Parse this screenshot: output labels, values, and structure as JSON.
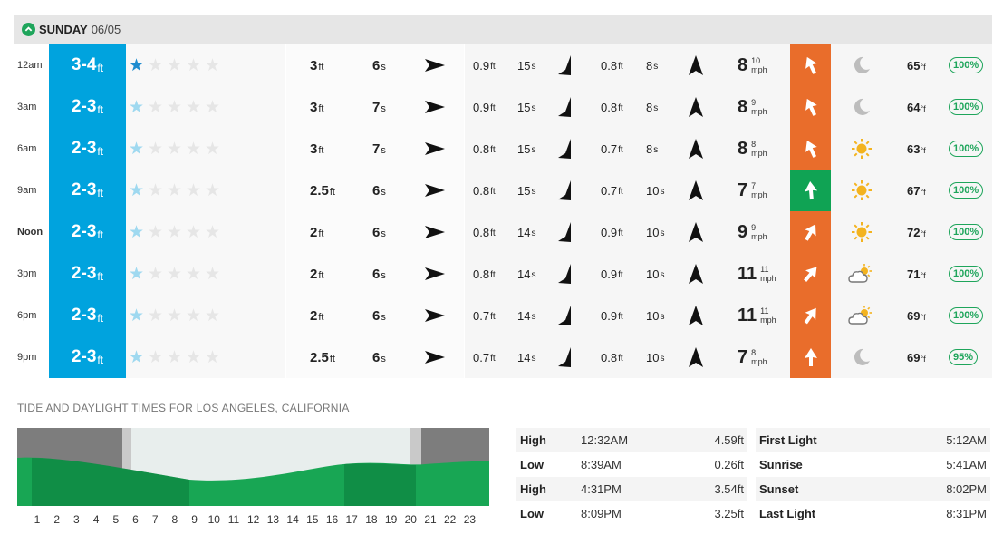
{
  "day": {
    "name": "SUNDAY",
    "date": "06/05"
  },
  "colors": {
    "surf_blue": "#00a3de",
    "wind_orange": "#e96d2b",
    "wind_green": "#10a354",
    "prob_green": "#1ea55b"
  },
  "rows": [
    {
      "time": "12am",
      "surf": "3-4",
      "stars": 1,
      "sw1_height": "3",
      "sw1_period": "6",
      "sw2_height": "0.9",
      "sw2_period": "15",
      "sw3_height": "0.8",
      "sw3_period": "8",
      "wind": "8",
      "wind_gust": "10",
      "wind_color": "orange",
      "wind_dir": 335,
      "weather": "moon",
      "temp": "65",
      "prob": "100%"
    },
    {
      "time": "3am",
      "surf": "2-3",
      "stars": 1,
      "sw1_height": "3",
      "sw1_period": "7",
      "sw2_height": "0.9",
      "sw2_period": "15",
      "sw3_height": "0.8",
      "sw3_period": "8",
      "wind": "8",
      "wind_gust": "9",
      "wind_color": "orange",
      "wind_dir": 335,
      "weather": "moon",
      "temp": "64",
      "prob": "100%"
    },
    {
      "time": "6am",
      "surf": "2-3",
      "stars": 1,
      "sw1_height": "3",
      "sw1_period": "7",
      "sw2_height": "0.8",
      "sw2_period": "15",
      "sw3_height": "0.7",
      "sw3_period": "8",
      "wind": "8",
      "wind_gust": "8",
      "wind_color": "orange",
      "wind_dir": 335,
      "weather": "sun",
      "temp": "63",
      "prob": "100%"
    },
    {
      "time": "9am",
      "surf": "2-3",
      "stars": 1,
      "sw1_height": "2.5",
      "sw1_period": "6",
      "sw2_height": "0.8",
      "sw2_period": "15",
      "sw3_height": "0.7",
      "sw3_period": "10",
      "wind": "7",
      "wind_gust": "7",
      "wind_color": "green",
      "wind_dir": 355,
      "weather": "sun",
      "temp": "67",
      "prob": "100%"
    },
    {
      "time": "Noon",
      "surf": "2-3",
      "stars": 1,
      "sw1_height": "2",
      "sw1_period": "6",
      "sw2_height": "0.8",
      "sw2_period": "14",
      "sw3_height": "0.9",
      "sw3_period": "10",
      "wind": "9",
      "wind_gust": "9",
      "wind_color": "orange",
      "wind_dir": 30,
      "weather": "sun",
      "temp": "72",
      "prob": "100%"
    },
    {
      "time": "3pm",
      "surf": "2-3",
      "stars": 1,
      "sw1_height": "2",
      "sw1_period": "6",
      "sw2_height": "0.8",
      "sw2_period": "14",
      "sw3_height": "0.9",
      "sw3_period": "10",
      "wind": "11",
      "wind_gust": "11",
      "wind_color": "orange",
      "wind_dir": 40,
      "weather": "partly",
      "temp": "71",
      "prob": "100%"
    },
    {
      "time": "6pm",
      "surf": "2-3",
      "stars": 1,
      "sw1_height": "2",
      "sw1_period": "6",
      "sw2_height": "0.7",
      "sw2_period": "14",
      "sw3_height": "0.9",
      "sw3_period": "10",
      "wind": "11",
      "wind_gust": "11",
      "wind_color": "orange",
      "wind_dir": 35,
      "weather": "partly",
      "temp": "69",
      "prob": "100%"
    },
    {
      "time": "9pm",
      "surf": "2-3",
      "stars": 1,
      "sw1_height": "2.5",
      "sw1_period": "6",
      "sw2_height": "0.7",
      "sw2_period": "14",
      "sw3_height": "0.8",
      "sw3_period": "10",
      "wind": "7",
      "wind_gust": "8",
      "wind_color": "orange",
      "wind_dir": 0,
      "weather": "moon",
      "temp": "69",
      "prob": "95%"
    }
  ],
  "units": {
    "ft": "ft",
    "s": "s",
    "mph": "mph",
    "deg": "°f"
  },
  "tide": {
    "title": "TIDE AND DAYLIGHT TIMES FOR LOS ANGELES, CALIFORNIA",
    "hours": [
      "1",
      "2",
      "3",
      "4",
      "5",
      "6",
      "7",
      "8",
      "9",
      "10",
      "11",
      "12",
      "13",
      "14",
      "15",
      "16",
      "17",
      "18",
      "19",
      "20",
      "21",
      "22",
      "23"
    ],
    "events": [
      {
        "type": "High",
        "time": "12:32AM",
        "height": "4.59ft"
      },
      {
        "type": "Low",
        "time": "8:39AM",
        "height": "0.26ft"
      },
      {
        "type": "High",
        "time": "4:31PM",
        "height": "3.54ft"
      },
      {
        "type": "Low",
        "time": "8:09PM",
        "height": "3.25ft"
      }
    ],
    "daylight": [
      {
        "label": "First Light",
        "time": "5:12AM"
      },
      {
        "label": "Sunrise",
        "time": "5:41AM"
      },
      {
        "label": "Sunset",
        "time": "8:02PM"
      },
      {
        "label": "Last Light",
        "time": "8:31PM"
      }
    ]
  }
}
